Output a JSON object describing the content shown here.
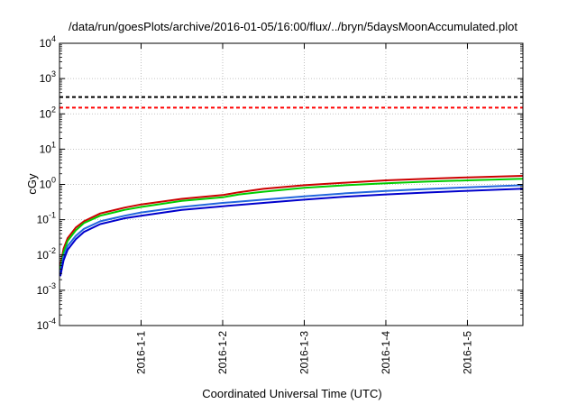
{
  "chart_data": {
    "type": "line",
    "title": "/data/run/goesPlots/archive/2016-01-05/16:00/flux/../bryn/5daysMoonAccumulated.plot",
    "xlabel": "Coordinated Universal Time (UTC)",
    "ylabel": "cGy",
    "y_scale": "log",
    "ylim": [
      0.0001,
      10000
    ],
    "x_unit": "days",
    "xlim": [
      0,
      5.68
    ],
    "y_ticks": [
      {
        "value": 0.0001,
        "base": "10",
        "exp": "-4"
      },
      {
        "value": 0.001,
        "base": "10",
        "exp": "-3"
      },
      {
        "value": 0.01,
        "base": "10",
        "exp": "-2"
      },
      {
        "value": 0.1,
        "base": "10",
        "exp": "-1"
      },
      {
        "value": 1,
        "base": "10",
        "exp": "0"
      },
      {
        "value": 10,
        "base": "10",
        "exp": "1"
      },
      {
        "value": 100,
        "base": "10",
        "exp": "2"
      },
      {
        "value": 1000,
        "base": "10",
        "exp": "3"
      },
      {
        "value": 10000,
        "base": "10",
        "exp": "4"
      }
    ],
    "x_ticks": [
      {
        "value": 1,
        "label": "2016-1-1"
      },
      {
        "value": 2,
        "label": "2016-1-2"
      },
      {
        "value": 3,
        "label": "2016-1-3"
      },
      {
        "value": 4,
        "label": "2016-1-4"
      },
      {
        "value": 5,
        "label": "2016-1-5"
      }
    ],
    "grid": true,
    "reference_lines": [
      {
        "value": 300,
        "color": "#000000",
        "style": "dashed"
      },
      {
        "value": 150,
        "color": "#ff0000",
        "style": "dashed"
      }
    ],
    "series": [
      {
        "color": "#cc0000",
        "x": [
          0.01,
          0.05,
          0.1,
          0.2,
          0.3,
          0.5,
          0.8,
          1.0,
          1.5,
          2.0,
          2.2,
          2.5,
          3.0,
          3.5,
          4.0,
          4.5,
          5.0,
          5.68
        ],
        "y": [
          0.005,
          0.015,
          0.03,
          0.06,
          0.09,
          0.15,
          0.22,
          0.27,
          0.39,
          0.5,
          0.6,
          0.75,
          0.95,
          1.12,
          1.3,
          1.45,
          1.58,
          1.75
        ]
      },
      {
        "color": "#00cc00",
        "x": [
          0.01,
          0.05,
          0.1,
          0.2,
          0.3,
          0.5,
          0.8,
          1.0,
          1.5,
          2.0,
          2.2,
          2.5,
          3.0,
          3.5,
          4.0,
          4.5,
          5.0,
          5.68
        ],
        "y": [
          0.004,
          0.012,
          0.025,
          0.05,
          0.08,
          0.13,
          0.19,
          0.23,
          0.34,
          0.43,
          0.52,
          0.62,
          0.8,
          0.95,
          1.08,
          1.2,
          1.3,
          1.45
        ]
      },
      {
        "color": "#2266dd",
        "x": [
          0.01,
          0.05,
          0.1,
          0.2,
          0.3,
          0.5,
          0.8,
          1.0,
          1.5,
          2.0,
          2.5,
          3.0,
          3.5,
          4.0,
          4.5,
          5.0,
          5.68
        ],
        "y": [
          0.003,
          0.009,
          0.018,
          0.035,
          0.055,
          0.09,
          0.13,
          0.16,
          0.23,
          0.3,
          0.37,
          0.46,
          0.56,
          0.65,
          0.74,
          0.83,
          0.95
        ]
      },
      {
        "color": "#0000cc",
        "x": [
          0.01,
          0.05,
          0.1,
          0.2,
          0.3,
          0.5,
          0.8,
          1.0,
          1.5,
          2.0,
          2.5,
          3.0,
          3.5,
          4.0,
          4.5,
          5.0,
          5.68
        ],
        "y": [
          0.0025,
          0.007,
          0.014,
          0.028,
          0.045,
          0.075,
          0.11,
          0.13,
          0.19,
          0.24,
          0.3,
          0.37,
          0.45,
          0.52,
          0.59,
          0.66,
          0.76
        ]
      }
    ]
  }
}
